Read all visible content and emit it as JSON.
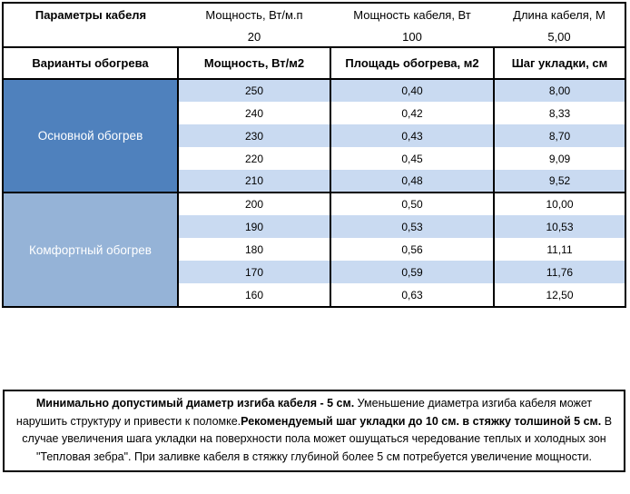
{
  "cable_params": {
    "title": "Параметры кабеля",
    "columns": [
      {
        "label": "Мощность, Вт/м.п",
        "value": "20"
      },
      {
        "label": "Мощность кабеля, Вт",
        "value": "100"
      },
      {
        "label": "Длина кабеля, М",
        "value": "5,00"
      }
    ]
  },
  "heating": {
    "headers": [
      "Варианты обогрева",
      "Мощность, Вт/м2",
      "Площадь обогрева, м2",
      "Шаг укладки, см"
    ],
    "groups": [
      {
        "label": "Основной обогрев",
        "color": "#4F81BD",
        "rows": [
          [
            "250",
            "0,40",
            "8,00"
          ],
          [
            "240",
            "0,42",
            "8,33"
          ],
          [
            "230",
            "0,43",
            "8,70"
          ],
          [
            "220",
            "0,45",
            "9,09"
          ],
          [
            "210",
            "0,48",
            "9,52"
          ]
        ]
      },
      {
        "label": "Комфортный обогрев",
        "color": "#95B3D7",
        "rows": [
          [
            "200",
            "0,50",
            "10,00"
          ],
          [
            "190",
            "0,53",
            "10,53"
          ],
          [
            "180",
            "0,56",
            "11,11"
          ],
          [
            "170",
            "0,59",
            "11,76"
          ],
          [
            "160",
            "0,63",
            "12,50"
          ]
        ]
      }
    ]
  },
  "note": {
    "runs": [
      {
        "bold": true,
        "text": "Минимально допустимый диаметр изгиба кабеля - 5 см."
      },
      {
        "bold": false,
        "text": "  Уменьшение диаметра изгиба кабеля может нарушить структуру и привести к поломке."
      },
      {
        "bold": true,
        "text": "Рекомендуемый шаг укладки до 10 см. в стяжку толшиной 5 см."
      },
      {
        "bold": false,
        "text": " В  случае увеличения шага укладки на поверхности пола может ошущаться чередование теплых и холодных зон \"Тепловая зебра\". При заливке кабеля в стяжку глубиной более 5 см потребуется увеличение мощности."
      }
    ]
  },
  "colors": {
    "row_band": "#C9DAF1",
    "group_main": "#4F81BD",
    "group_comfort": "#95B3D7",
    "border": "#000000"
  }
}
